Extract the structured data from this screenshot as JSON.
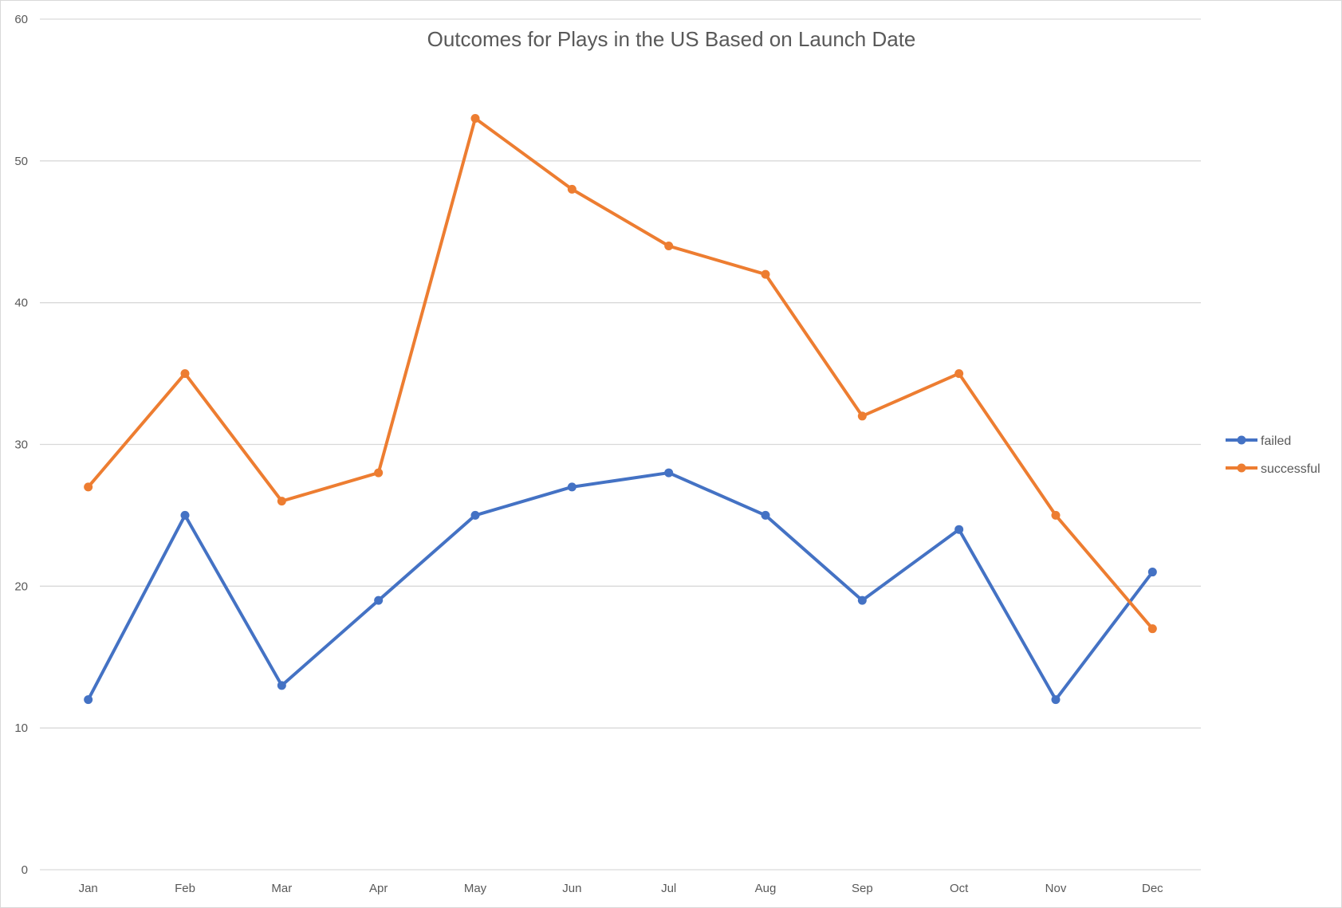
{
  "chart_data": {
    "type": "line",
    "title": "Outcomes for Plays in the US Based on Launch Date",
    "xlabel": "",
    "ylabel": "",
    "categories": [
      "Jan",
      "Feb",
      "Mar",
      "Apr",
      "May",
      "Jun",
      "Jul",
      "Aug",
      "Sep",
      "Oct",
      "Nov",
      "Dec"
    ],
    "ylim": [
      0,
      60
    ],
    "yticks": [
      0,
      10,
      20,
      30,
      40,
      50,
      60
    ],
    "grid": true,
    "legend_position": "right",
    "series": [
      {
        "name": "failed",
        "color": "#4472C4",
        "values": [
          12,
          25,
          13,
          19,
          25,
          27,
          28,
          25,
          19,
          24,
          12,
          21
        ]
      },
      {
        "name": "successful",
        "color": "#ED7D31",
        "values": [
          27,
          35,
          26,
          28,
          53,
          48,
          44,
          42,
          32,
          35,
          25,
          17
        ]
      }
    ]
  }
}
